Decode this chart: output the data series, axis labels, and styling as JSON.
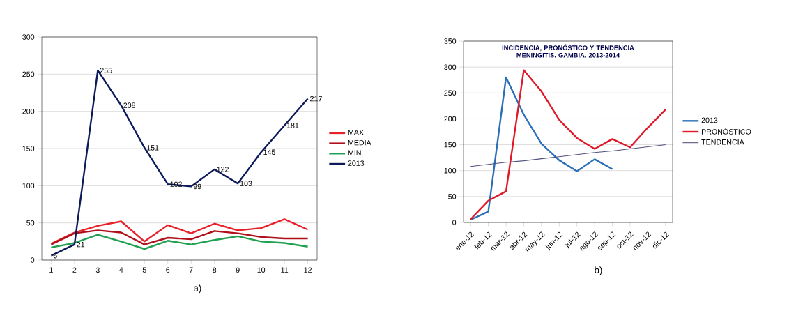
{
  "chart_data": [
    {
      "type": "line",
      "categories": [
        "1",
        "2",
        "3",
        "4",
        "5",
        "6",
        "7",
        "8",
        "9",
        "10",
        "11",
        "12"
      ],
      "ylim": [
        0,
        300
      ],
      "yticks": [
        0,
        50,
        100,
        150,
        200,
        250,
        300
      ],
      "grid": "y",
      "legend": "right",
      "marker": "none",
      "annotations": [
        "a)"
      ],
      "series": [
        {
          "name": "MAX",
          "color": "#e8202a",
          "values": [
            22,
            37,
            46,
            52,
            25,
            47,
            36,
            49,
            40,
            43,
            55,
            41
          ]
        },
        {
          "name": "MEDIA",
          "color": "#b0101a",
          "values": [
            21,
            36,
            40,
            37,
            21,
            30,
            28,
            39,
            36,
            31,
            29,
            29
          ]
        },
        {
          "name": "MIN",
          "color": "#20a050",
          "values": [
            17,
            23,
            34,
            25,
            15,
            26,
            21,
            27,
            32,
            25,
            23,
            18
          ]
        },
        {
          "name": "2013",
          "color": "#0d1a5a",
          "values": [
            6,
            21,
            255,
            208,
            151,
            102,
            99,
            122,
            103,
            145,
            181,
            217
          ],
          "value_labels": [
            "6",
            "21",
            "255",
            "208",
            "151",
            "102",
            "99",
            "122",
            "103",
            "145",
            "181",
            "217"
          ]
        }
      ]
    },
    {
      "type": "line",
      "title": "INCIDENCIA, PRONÓSTICO Y TENDENCIA MENINGITIS. GAMBIA. 2013-2014",
      "categories": [
        "ene-12",
        "feb-12",
        "mar-12",
        "abr-12",
        "may-12",
        "jun-12",
        "jul-12",
        "ago-12",
        "sep-12",
        "oct-12",
        "nov-12",
        "dic-12"
      ],
      "ylim": [
        0,
        350
      ],
      "yticks": [
        0,
        50,
        100,
        150,
        200,
        250,
        300,
        350
      ],
      "grid": "y",
      "legend": "right",
      "marker": "none",
      "annotations": [
        "b)"
      ],
      "series": [
        {
          "name": "2013",
          "color": "#2a6fb8",
          "values": [
            5,
            21,
            280,
            208,
            152,
            120,
            99,
            122,
            103,
            null,
            null,
            null
          ]
        },
        {
          "name": "PRONÓSTICO",
          "color": "#e01828",
          "values": [
            6,
            42,
            60,
            294,
            253,
            198,
            163,
            142,
            161,
            145,
            183,
            218
          ]
        },
        {
          "name": "TENDENCIA",
          "color": "#505080",
          "values": [
            108,
            112,
            116,
            119,
            123,
            127,
            131,
            135,
            138,
            142,
            146,
            150
          ]
        }
      ]
    }
  ]
}
